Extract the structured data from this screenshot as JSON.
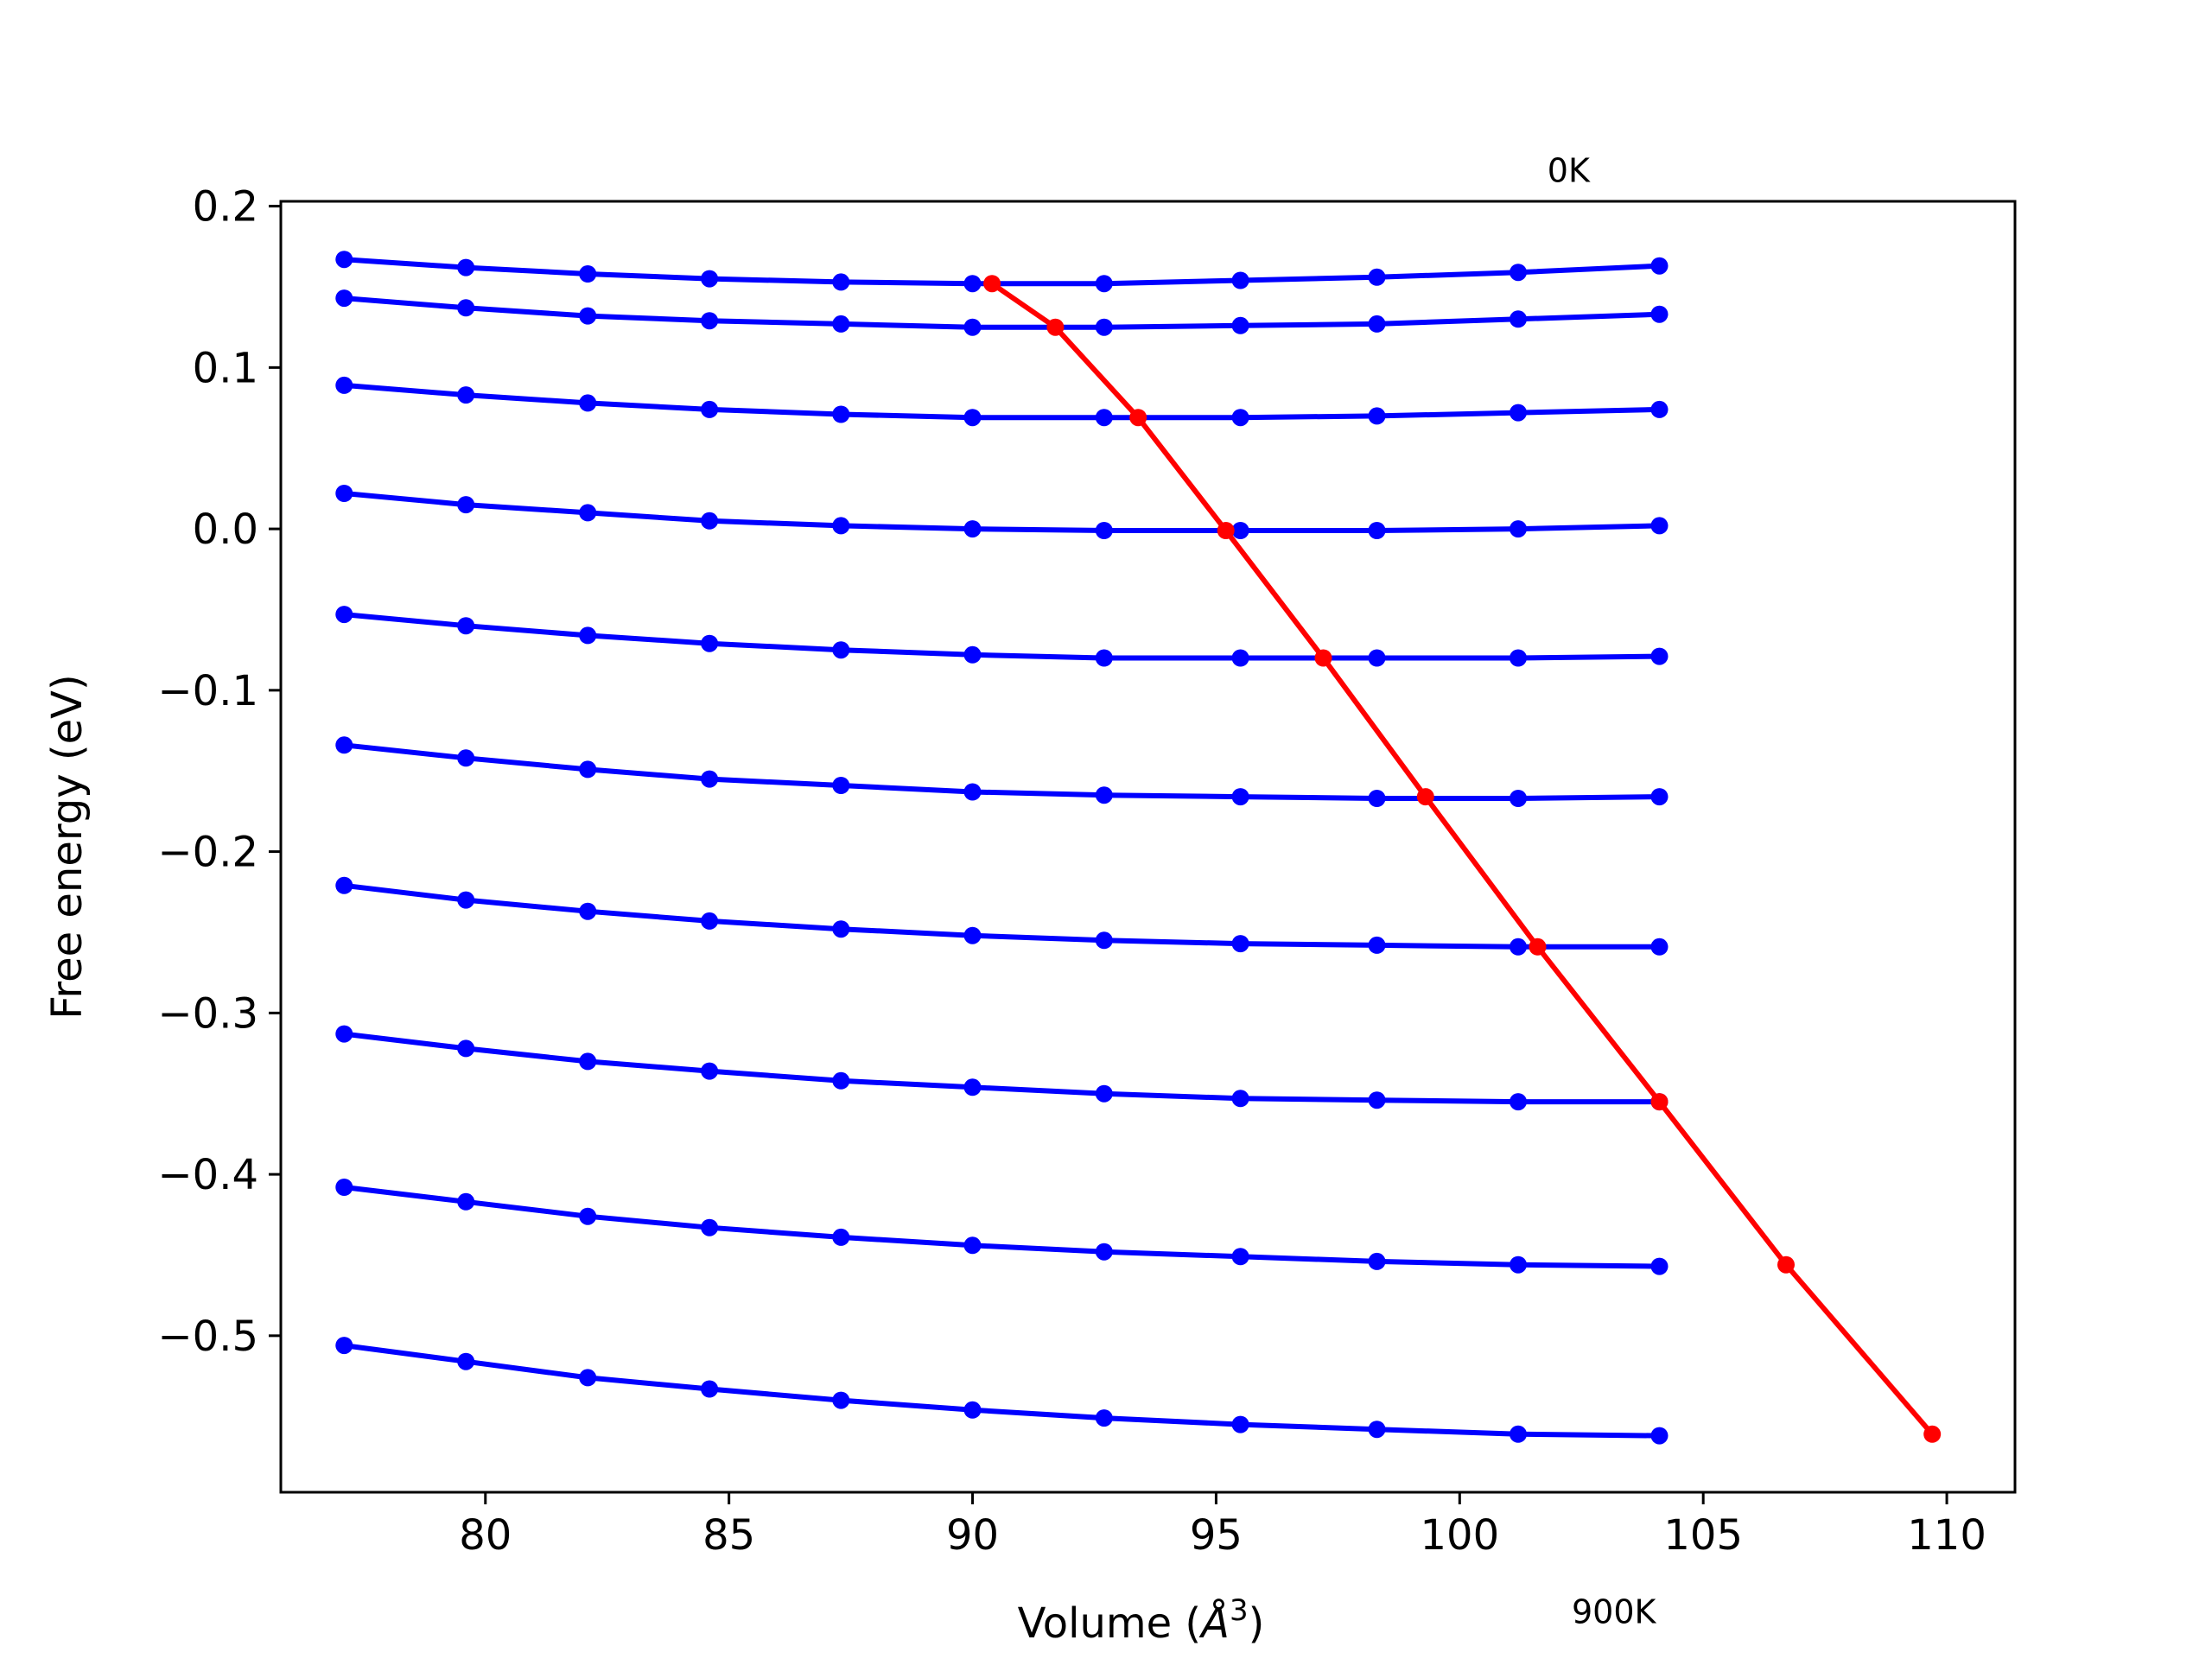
{
  "chart_data": {
    "type": "line",
    "title": "",
    "xlabel": "Volume (Å³)",
    "xlabel_main": "Volume (",
    "xlabel_A": "Å",
    "xlabel_exp": "3",
    "xlabel_close": ")",
    "ylabel": "Free energy (eV)",
    "xlim": [
      75.8,
      111.4
    ],
    "ylim": [
      -0.597,
      0.203
    ],
    "xticks": [
      80,
      85,
      90,
      95,
      100,
      105,
      110
    ],
    "xtick_labels": [
      "80",
      "85",
      "90",
      "95",
      "100",
      "105",
      "110"
    ],
    "yticks": [
      0.2,
      0.1,
      0.0,
      -0.1,
      -0.2,
      -0.3,
      -0.4,
      -0.5
    ],
    "ytick_labels": [
      "0.2",
      "0.1",
      "0.0",
      "−0.1",
      "−0.2",
      "−0.3",
      "−0.4",
      "−0.5"
    ],
    "grid": false,
    "annotations": [
      {
        "text": "0K",
        "x": 101.8,
        "y": 0.215
      },
      {
        "text": "900K",
        "x": 102.3,
        "y": -0.678
      }
    ],
    "x": [
      77.1,
      79.6,
      82.1,
      84.6,
      87.3,
      90.0,
      92.7,
      95.5,
      98.3,
      101.2,
      104.1
    ],
    "series": [
      {
        "color": "#0000ff",
        "values": [
          0.167,
          0.162,
          0.158,
          0.155,
          0.153,
          0.152,
          0.152,
          0.154,
          0.156,
          0.159,
          0.163
        ]
      },
      {
        "color": "#0000ff",
        "values": [
          0.143,
          0.137,
          0.132,
          0.129,
          0.127,
          0.125,
          0.125,
          0.126,
          0.127,
          0.13,
          0.133
        ]
      },
      {
        "color": "#0000ff",
        "values": [
          0.089,
          0.083,
          0.078,
          0.074,
          0.071,
          0.069,
          0.069,
          0.069,
          0.07,
          0.072,
          0.074
        ]
      },
      {
        "color": "#0000ff",
        "values": [
          0.022,
          0.015,
          0.01,
          0.005,
          0.002,
          0.0,
          -0.001,
          -0.001,
          -0.001,
          0.0,
          0.002
        ]
      },
      {
        "color": "#0000ff",
        "values": [
          -0.053,
          -0.06,
          -0.066,
          -0.071,
          -0.075,
          -0.078,
          -0.08,
          -0.08,
          -0.08,
          -0.08,
          -0.079
        ]
      },
      {
        "color": "#0000ff",
        "values": [
          -0.134,
          -0.142,
          -0.149,
          -0.155,
          -0.159,
          -0.163,
          -0.165,
          -0.166,
          -0.167,
          -0.167,
          -0.166
        ]
      },
      {
        "color": "#0000ff",
        "values": [
          -0.221,
          -0.23,
          -0.237,
          -0.243,
          -0.248,
          -0.252,
          -0.255,
          -0.257,
          -0.258,
          -0.259,
          -0.259
        ]
      },
      {
        "color": "#0000ff",
        "values": [
          -0.313,
          -0.322,
          -0.33,
          -0.336,
          -0.342,
          -0.346,
          -0.35,
          -0.353,
          -0.354,
          -0.355,
          -0.355
        ]
      },
      {
        "color": "#0000ff",
        "values": [
          -0.408,
          -0.417,
          -0.426,
          -0.433,
          -0.439,
          -0.444,
          -0.448,
          -0.451,
          -0.454,
          -0.456,
          -0.457
        ]
      },
      {
        "color": "#0000ff",
        "values": [
          -0.506,
          -0.516,
          -0.526,
          -0.533,
          -0.54,
          -0.546,
          -0.551,
          -0.555,
          -0.558,
          -0.561,
          -0.562
        ]
      }
    ],
    "minimum_line": {
      "color": "#ff0000",
      "x": [
        90.4,
        91.7,
        93.4,
        95.2,
        97.2,
        99.3,
        101.6,
        104.1,
        106.7,
        109.7
      ],
      "y": [
        0.152,
        0.125,
        0.069,
        -0.001,
        -0.08,
        -0.166,
        -0.259,
        -0.355,
        -0.456,
        -0.561
      ]
    }
  }
}
